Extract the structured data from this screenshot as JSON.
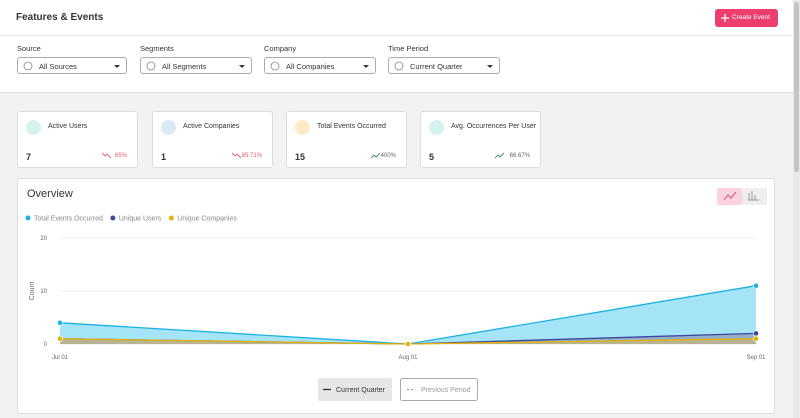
{
  "header": {
    "title": "Features & Events",
    "button": "Create Event"
  },
  "filters": [
    {
      "label": "Source",
      "value": "All Sources"
    },
    {
      "label": "Segments",
      "value": "All Segments"
    },
    {
      "label": "Company",
      "value": "All Companies"
    },
    {
      "label": "Time Period",
      "value": "Current Quarter"
    }
  ],
  "kpis": [
    {
      "label": "Active Users",
      "value": "7",
      "change": "65%"
    },
    {
      "label": "Active Companies",
      "value": "1",
      "change": "85.71%"
    },
    {
      "label": "Total Events Occurred",
      "value": "15",
      "change": "400%"
    },
    {
      "label": "Avg. Occurrences Per User",
      "value": "5",
      "change": "66.67%"
    }
  ],
  "chart_data": {
    "type": "area",
    "title": "Overview",
    "y_label": "Count",
    "categories": [
      "Jul 01",
      "Aug 01",
      "Sep 01"
    ],
    "series": [
      {
        "name": "Total Events Occurred",
        "color": "#1ab3e0",
        "values": [
          4,
          0,
          11
        ]
      },
      {
        "name": "Unique Users",
        "color": "#3b4a9c",
        "values": [
          1,
          0,
          2
        ]
      },
      {
        "name": "Unique Companies",
        "color": "#e2b20a",
        "values": [
          1,
          0,
          1
        ]
      }
    ],
    "ylim": [
      0,
      20
    ],
    "yticks": [
      0,
      10,
      20
    ],
    "grid": true
  },
  "buttons": [
    "Current Quarter",
    "Previous Period"
  ]
}
